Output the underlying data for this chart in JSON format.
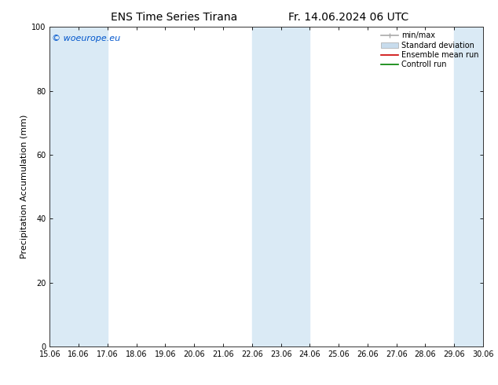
{
  "title_left": "ENS Time Series Tirana",
  "title_right": "Fr. 14.06.2024 06 UTC",
  "ylabel": "Precipitation Accumulation (mm)",
  "watermark": "© woeurope.eu",
  "watermark_color": "#0055cc",
  "ylim": [
    0,
    100
  ],
  "x_numeric_start": 15.06,
  "x_numeric_end": 30.06,
  "x_ticks": [
    15.06,
    16.06,
    17.06,
    18.06,
    19.06,
    20.06,
    21.06,
    22.06,
    23.06,
    24.06,
    25.06,
    26.06,
    27.06,
    28.06,
    29.06,
    30.06
  ],
  "x_tick_labels": [
    "15.06",
    "16.06",
    "17.06",
    "18.06",
    "19.06",
    "20.06",
    "21.06",
    "22.06",
    "23.06",
    "24.06",
    "25.06",
    "26.06",
    "27.06",
    "28.06",
    "29.06",
    "30.06"
  ],
  "shaded_regions": [
    {
      "x_start": 15.06,
      "x_end": 16.06
    },
    {
      "x_start": 16.06,
      "x_end": 17.06
    },
    {
      "x_start": 22.06,
      "x_end": 23.06
    },
    {
      "x_start": 23.06,
      "x_end": 24.06
    },
    {
      "x_start": 29.06,
      "x_end": 30.06
    }
  ],
  "shade_color": "#daeaf5",
  "background_color": "#ffffff",
  "legend_labels": [
    "min/max",
    "Standard deviation",
    "Ensemble mean run",
    "Controll run"
  ],
  "legend_line_color": "#aaaaaa",
  "legend_std_color": "#c8dced",
  "legend_mean_color": "#cc0000",
  "legend_ctrl_color": "#008000",
  "title_fontsize": 10,
  "tick_fontsize": 7,
  "ylabel_fontsize": 8,
  "watermark_fontsize": 8,
  "legend_fontsize": 7
}
